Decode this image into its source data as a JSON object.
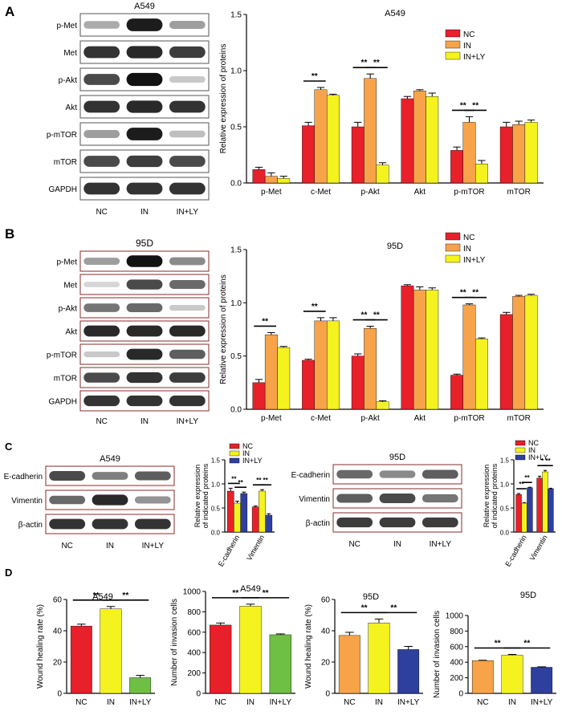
{
  "panel_labels": {
    "a": "A",
    "b": "B",
    "c": "C",
    "d": "D"
  },
  "colors": {
    "nc": "#e8202a",
    "in_orange": "#f7a349",
    "in_yellow": "#f4f21f",
    "ly_yellow": "#f4f21f",
    "ly_blue": "#2e3f9e",
    "ly_green": "#6fbf44"
  },
  "blots": {
    "a": {
      "title": "A549",
      "rows": [
        {
          "label": "p-Met",
          "bands": [
            0.25,
            0.9,
            0.3
          ]
        },
        {
          "label": "Met",
          "bands": [
            0.8,
            0.85,
            0.75
          ]
        },
        {
          "label": "p-Akt",
          "bands": [
            0.7,
            0.95,
            0.1
          ]
        },
        {
          "label": "Akt",
          "bands": [
            0.8,
            0.85,
            0.8
          ]
        },
        {
          "label": "p-mTOR",
          "bands": [
            0.3,
            0.9,
            0.15
          ]
        },
        {
          "label": "mTOR",
          "bands": [
            0.7,
            0.75,
            0.7
          ]
        },
        {
          "label": "GAPDH",
          "bands": [
            0.8,
            0.8,
            0.8
          ]
        }
      ],
      "lanes": [
        "NC",
        "IN",
        "IN+LY"
      ]
    },
    "b": {
      "title": "95D",
      "rows": [
        {
          "label": "p-Met",
          "bands": [
            0.3,
            0.95,
            0.4
          ]
        },
        {
          "label": "Met",
          "bands": [
            0.05,
            0.7,
            0.55
          ]
        },
        {
          "label": "p-Akt",
          "bands": [
            0.5,
            0.55,
            0.1
          ]
        },
        {
          "label": "Akt",
          "bands": [
            0.85,
            0.85,
            0.85
          ]
        },
        {
          "label": "p-mTOR",
          "bands": [
            0.1,
            0.85,
            0.6
          ]
        },
        {
          "label": "mTOR",
          "bands": [
            0.7,
            0.8,
            0.75
          ]
        },
        {
          "label": "GAPDH",
          "bands": [
            0.8,
            0.8,
            0.8
          ]
        }
      ],
      "lanes": [
        "NC",
        "IN",
        "IN+LY"
      ]
    },
    "c_a549": {
      "title": "A549",
      "rows": [
        {
          "label": "E-cadherin",
          "bands": [
            0.7,
            0.45,
            0.6
          ]
        },
        {
          "label": "Vimentin",
          "bands": [
            0.55,
            0.85,
            0.35
          ]
        },
        {
          "label": "β-actin",
          "bands": [
            0.8,
            0.8,
            0.8
          ]
        }
      ],
      "lanes": [
        "NC",
        "IN",
        "IN+LY"
      ]
    },
    "c_95d": {
      "title": "95D",
      "rows": [
        {
          "label": "E-cadherin",
          "bands": [
            0.55,
            0.4,
            0.6
          ]
        },
        {
          "label": "Vimentin",
          "bands": [
            0.6,
            0.7,
            0.5
          ]
        },
        {
          "label": "β-actin",
          "bands": [
            0.75,
            0.75,
            0.75
          ]
        }
      ],
      "lanes": [
        "NC",
        "IN",
        "IN+LY"
      ]
    }
  },
  "chart_data": [
    {
      "id": "a",
      "type": "bar",
      "title": "A549",
      "ylabel": "Relative expression of proteins",
      "ylim": [
        0,
        1.5
      ],
      "yticks": [
        "0.0",
        "0.5",
        "1.0",
        "1.5"
      ],
      "categories": [
        "p-Met",
        "c-Met",
        "p-Akt",
        "Akt",
        "p-mTOR",
        "mTOR"
      ],
      "series": [
        {
          "name": "NC",
          "values": [
            0.12,
            0.51,
            0.5,
            0.75,
            0.29,
            0.5
          ],
          "errors": [
            0.02,
            0.03,
            0.04,
            0.02,
            0.03,
            0.04
          ]
        },
        {
          "name": "IN",
          "values": [
            0.06,
            0.83,
            0.93,
            0.82,
            0.54,
            0.52
          ],
          "errors": [
            0.03,
            0.02,
            0.04,
            0.01,
            0.05,
            0.03
          ]
        },
        {
          "name": "IN+LY",
          "values": [
            0.04,
            0.78,
            0.16,
            0.77,
            0.17,
            0.54
          ],
          "errors": [
            0.02,
            0.01,
            0.02,
            0.03,
            0.03,
            0.02
          ]
        }
      ],
      "legend": "top-right",
      "significance": [
        {
          "cat": 1,
          "from": 0,
          "to": 1,
          "label": "**"
        },
        {
          "cat": 2,
          "from": 0,
          "to": 1,
          "label": "**"
        },
        {
          "cat": 2,
          "from": 1,
          "to": 2,
          "label": "**"
        },
        {
          "cat": 4,
          "from": 0,
          "to": 1,
          "label": "**"
        },
        {
          "cat": 4,
          "from": 1,
          "to": 2,
          "label": "**"
        }
      ]
    },
    {
      "id": "b",
      "type": "bar",
      "title": "95D",
      "ylabel": "Relative expression of proteins",
      "ylim": [
        0,
        1.5
      ],
      "yticks": [
        "0.0",
        "0.5",
        "1.0",
        "1.5"
      ],
      "categories": [
        "p-Met",
        "c-Met",
        "p-Akt",
        "Akt",
        "p-mTOR",
        "mTOR"
      ],
      "series": [
        {
          "name": "NC",
          "values": [
            0.25,
            0.46,
            0.5,
            1.16,
            0.32,
            0.89
          ],
          "errors": [
            0.03,
            0.01,
            0.02,
            0.01,
            0.01,
            0.02
          ]
        },
        {
          "name": "IN",
          "values": [
            0.7,
            0.83,
            0.76,
            1.12,
            0.98,
            1.06
          ],
          "errors": [
            0.02,
            0.03,
            0.02,
            0.03,
            0.01,
            0.01
          ]
        },
        {
          "name": "IN+LY",
          "values": [
            0.58,
            0.83,
            0.07,
            1.12,
            0.66,
            1.07
          ],
          "errors": [
            0.01,
            0.03,
            0.01,
            0.02,
            0.01,
            0.01
          ]
        }
      ],
      "legend": "top-right",
      "significance": [
        {
          "cat": 0,
          "from": 0,
          "to": 1,
          "label": "**"
        },
        {
          "cat": 1,
          "from": 0,
          "to": 1,
          "label": "**"
        },
        {
          "cat": 2,
          "from": 0,
          "to": 1,
          "label": "**"
        },
        {
          "cat": 2,
          "from": 1,
          "to": 2,
          "label": "**"
        },
        {
          "cat": 4,
          "from": 0,
          "to": 1,
          "label": "**"
        },
        {
          "cat": 4,
          "from": 1,
          "to": 2,
          "label": "**"
        }
      ]
    },
    {
      "id": "c1",
      "type": "bar",
      "title": "",
      "ylabel": "Relative expression\nof indicated proteins",
      "ylim": [
        0,
        1.5
      ],
      "yticks": [
        "0.0",
        "0.5",
        "1.0",
        "1.5"
      ],
      "categories": [
        "E-cadherin",
        "Vimentin"
      ],
      "series": [
        {
          "name": "NC",
          "values": [
            0.85,
            0.52
          ],
          "errors": [
            0.06,
            0.02
          ]
        },
        {
          "name": "IN",
          "values": [
            0.6,
            0.85
          ],
          "errors": [
            0.04,
            0.03
          ]
        },
        {
          "name": "IN+LY",
          "values": [
            0.8,
            0.35
          ],
          "errors": [
            0.03,
            0.03
          ]
        }
      ],
      "legend": "top",
      "significance": [
        {
          "cat": 0,
          "from": 0,
          "to": 1,
          "label": "**"
        },
        {
          "cat": 0,
          "from": 1,
          "to": 2,
          "label": "**"
        },
        {
          "cat": 1,
          "from": 0,
          "to": 1,
          "label": "**"
        },
        {
          "cat": 1,
          "from": 1,
          "to": 2,
          "label": "**"
        }
      ]
    },
    {
      "id": "c2",
      "type": "bar",
      "title": "",
      "ylabel": "Relative expression\nof indicated proteins",
      "ylim": [
        0,
        1.5
      ],
      "yticks": [
        "0.0",
        "0.5",
        "1.0",
        "1.5"
      ],
      "categories": [
        "E-cadherin",
        "Vimentin"
      ],
      "series": [
        {
          "name": "NC",
          "values": [
            0.78,
            1.12
          ],
          "errors": [
            0.02,
            0.04
          ]
        },
        {
          "name": "IN",
          "values": [
            0.6,
            1.25
          ],
          "errors": [
            0.01,
            0.03
          ]
        },
        {
          "name": "IN+LY",
          "values": [
            0.92,
            0.9
          ],
          "errors": [
            0.01,
            0.01
          ]
        }
      ],
      "legend": "top",
      "significance": [
        {
          "cat": 0,
          "from": 0,
          "to": 1,
          "label": "**"
        },
        {
          "cat": 0,
          "from": 1,
          "to": 2,
          "label": "**"
        },
        {
          "cat": 1,
          "from": 0,
          "to": 1,
          "label": "*"
        },
        {
          "cat": 1,
          "from": 1,
          "to": 2,
          "label": "**"
        }
      ]
    },
    {
      "id": "d1",
      "type": "bar",
      "title": "A549",
      "ylabel": "Wound healing rate (%)",
      "ylim": [
        0,
        60
      ],
      "yticks": [
        "0",
        "20",
        "40",
        "60"
      ],
      "categories": [
        "NC",
        "IN",
        "IN+LY"
      ],
      "values": [
        43,
        54,
        10
      ],
      "errors": [
        1.2,
        1.5,
        1.5
      ],
      "significance": [
        {
          "from": 0,
          "to": 1,
          "label": "**"
        },
        {
          "from": 1,
          "to": 2,
          "label": "**"
        }
      ]
    },
    {
      "id": "d2",
      "type": "bar",
      "title": "A549",
      "ylabel": "Number of invasion cells",
      "ylim": [
        0,
        1000
      ],
      "yticks": [
        "0",
        "200",
        "400",
        "600",
        "800",
        "1000"
      ],
      "categories": [
        "NC",
        "IN",
        "IN+LY"
      ],
      "values": [
        670,
        855,
        575
      ],
      "errors": [
        20,
        20,
        8
      ],
      "significance": [
        {
          "from": 0,
          "to": 1,
          "label": "**"
        },
        {
          "from": 1,
          "to": 2,
          "label": "**"
        }
      ]
    },
    {
      "id": "d3",
      "type": "bar",
      "title": "95D",
      "ylabel": "Wound healing rate (%)",
      "ylim": [
        0,
        60
      ],
      "yticks": [
        "0",
        "20",
        "40",
        "60"
      ],
      "categories": [
        "NC",
        "IN",
        "IN+LY"
      ],
      "values": [
        37,
        45,
        28
      ],
      "errors": [
        2,
        2.5,
        2
      ],
      "significance": [
        {
          "from": 0,
          "to": 1,
          "label": "**"
        },
        {
          "from": 1,
          "to": 2,
          "label": "**"
        }
      ]
    },
    {
      "id": "d4",
      "type": "bar",
      "title": "95D",
      "ylabel": "Number of invasion cells",
      "ylim": [
        0,
        1000
      ],
      "yticks": [
        "0",
        "200",
        "400",
        "600",
        "800",
        "1000"
      ],
      "categories": [
        "NC",
        "IN",
        "IN+LY"
      ],
      "values": [
        420,
        490,
        335
      ],
      "errors": [
        5,
        10,
        6
      ],
      "significance": [
        {
          "from": 0,
          "to": 1,
          "label": "**"
        },
        {
          "from": 1,
          "to": 2,
          "label": "**"
        }
      ]
    }
  ]
}
